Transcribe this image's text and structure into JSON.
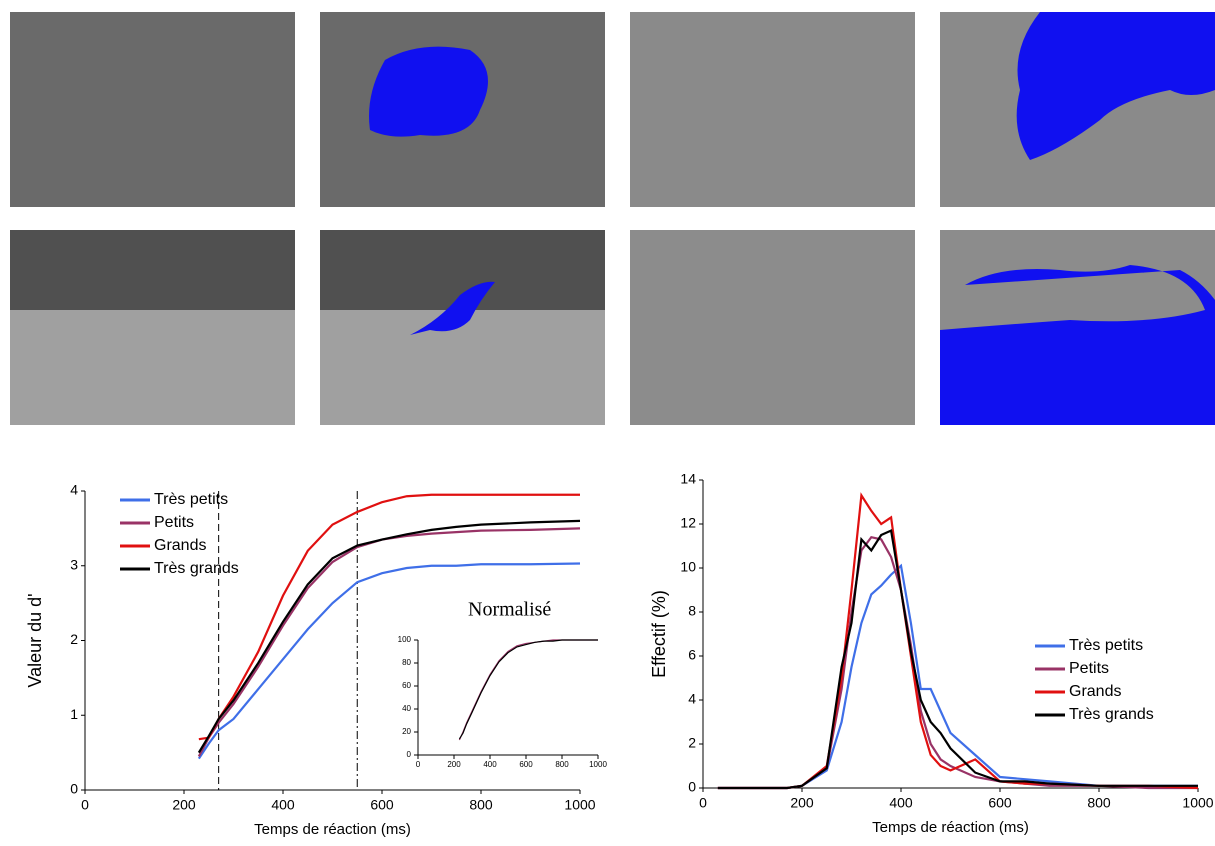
{
  "chart_data": [
    {
      "type": "line",
      "xlabel": "Temps de réaction (ms)",
      "ylabel": "Valeur du d'",
      "annotation": "Normalisé",
      "x": [
        230,
        250,
        270,
        300,
        350,
        400,
        450,
        500,
        550,
        600,
        650,
        700,
        750,
        800,
        900,
        1000
      ],
      "series": [
        {
          "name": "Très petits",
          "color": "#3f6fe8",
          "values": [
            0.42,
            0.62,
            0.8,
            0.95,
            1.35,
            1.75,
            2.15,
            2.5,
            2.78,
            2.9,
            2.97,
            3.0,
            3.0,
            3.02,
            3.02,
            3.03
          ]
        },
        {
          "name": "Petits",
          "color": "#993366",
          "values": [
            0.45,
            0.7,
            0.9,
            1.15,
            1.65,
            2.2,
            2.7,
            3.05,
            3.25,
            3.35,
            3.4,
            3.43,
            3.45,
            3.47,
            3.48,
            3.5
          ]
        },
        {
          "name": "Grands",
          "color": "#e01010",
          "values": [
            0.68,
            0.7,
            0.95,
            1.25,
            1.85,
            2.6,
            3.2,
            3.55,
            3.72,
            3.85,
            3.93,
            3.95,
            3.95,
            3.95,
            3.95,
            3.95
          ]
        },
        {
          "name": "Très grands",
          "color": "#000000",
          "values": [
            0.5,
            0.72,
            0.95,
            1.2,
            1.7,
            2.25,
            2.75,
            3.1,
            3.27,
            3.35,
            3.42,
            3.48,
            3.52,
            3.55,
            3.58,
            3.6
          ]
        }
      ],
      "reference_lines": [
        270,
        550
      ],
      "xlim": [
        0,
        1000
      ],
      "ylim": [
        0,
        4
      ],
      "xticks": [
        0,
        200,
        400,
        600,
        800,
        1000
      ],
      "yticks": [
        0,
        1,
        2,
        3,
        4
      ]
    },
    {
      "type": "line",
      "x": [
        230,
        250,
        270,
        300,
        350,
        400,
        450,
        500,
        550,
        600,
        650,
        700,
        750,
        800,
        900,
        1000
      ],
      "series": [
        {
          "color": "#993366",
          "values": [
            13,
            20,
            28,
            38,
            55,
            70,
            82,
            90,
            95,
            97,
            98,
            99,
            100,
            100,
            100,
            100
          ]
        },
        {
          "color": "#000000",
          "values": [
            14,
            19,
            27,
            37,
            54,
            69,
            81,
            89,
            94,
            96,
            98,
            99,
            99,
            100,
            100,
            100
          ]
        }
      ],
      "xlim": [
        0,
        1000
      ],
      "ylim": [
        0,
        100
      ],
      "xticks": [
        0,
        200,
        400,
        600,
        800,
        1000
      ],
      "yticks": [
        0,
        20,
        40,
        60,
        80,
        100
      ]
    },
    {
      "type": "line",
      "xlabel": "Temps de réaction (ms)",
      "ylabel": "Effectif (%)",
      "x": [
        30,
        100,
        170,
        200,
        250,
        280,
        300,
        320,
        340,
        360,
        380,
        400,
        420,
        440,
        460,
        480,
        500,
        550,
        600,
        650,
        700,
        800,
        900,
        1000
      ],
      "series": [
        {
          "name": "Très petits",
          "color": "#3f6fe8",
          "values": [
            0,
            0,
            0,
            0.1,
            0.8,
            3,
            5.5,
            7.5,
            8.8,
            9.2,
            9.7,
            10.1,
            7.5,
            4.5,
            4.5,
            3.5,
            2.5,
            1.5,
            0.5,
            0.4,
            0.3,
            0.1,
            0.1,
            0.1
          ]
        },
        {
          "name": "Petits",
          "color": "#993366",
          "values": [
            0,
            0,
            0,
            0.1,
            0.9,
            4.5,
            8,
            10.8,
            11.4,
            11.3,
            10.5,
            9,
            6.5,
            3.5,
            2,
            1.3,
            1,
            0.5,
            0.3,
            0.2,
            0.1,
            0.1,
            0,
            0
          ]
        },
        {
          "name": "Grands",
          "color": "#e01010",
          "values": [
            0,
            0,
            0,
            0.1,
            1,
            5,
            9,
            13.3,
            12.6,
            12,
            12.3,
            9,
            6,
            3,
            1.5,
            1,
            0.8,
            1.3,
            0.3,
            0.2,
            0.2,
            0.1,
            0.1,
            0
          ]
        },
        {
          "name": "Très grands",
          "color": "#000000",
          "values": [
            0,
            0,
            0,
            0.1,
            0.9,
            5.5,
            7.5,
            11.3,
            10.8,
            11.5,
            11.7,
            9,
            6.2,
            4,
            3,
            2.5,
            1.8,
            0.7,
            0.3,
            0.3,
            0.2,
            0.1,
            0.1,
            0.1
          ]
        }
      ],
      "xlim": [
        0,
        1000
      ],
      "ylim": [
        0,
        14
      ],
      "xticks": [
        0,
        200,
        400,
        600,
        800,
        1000
      ],
      "yticks": [
        0,
        2,
        4,
        6,
        8,
        10,
        12,
        14
      ]
    }
  ]
}
